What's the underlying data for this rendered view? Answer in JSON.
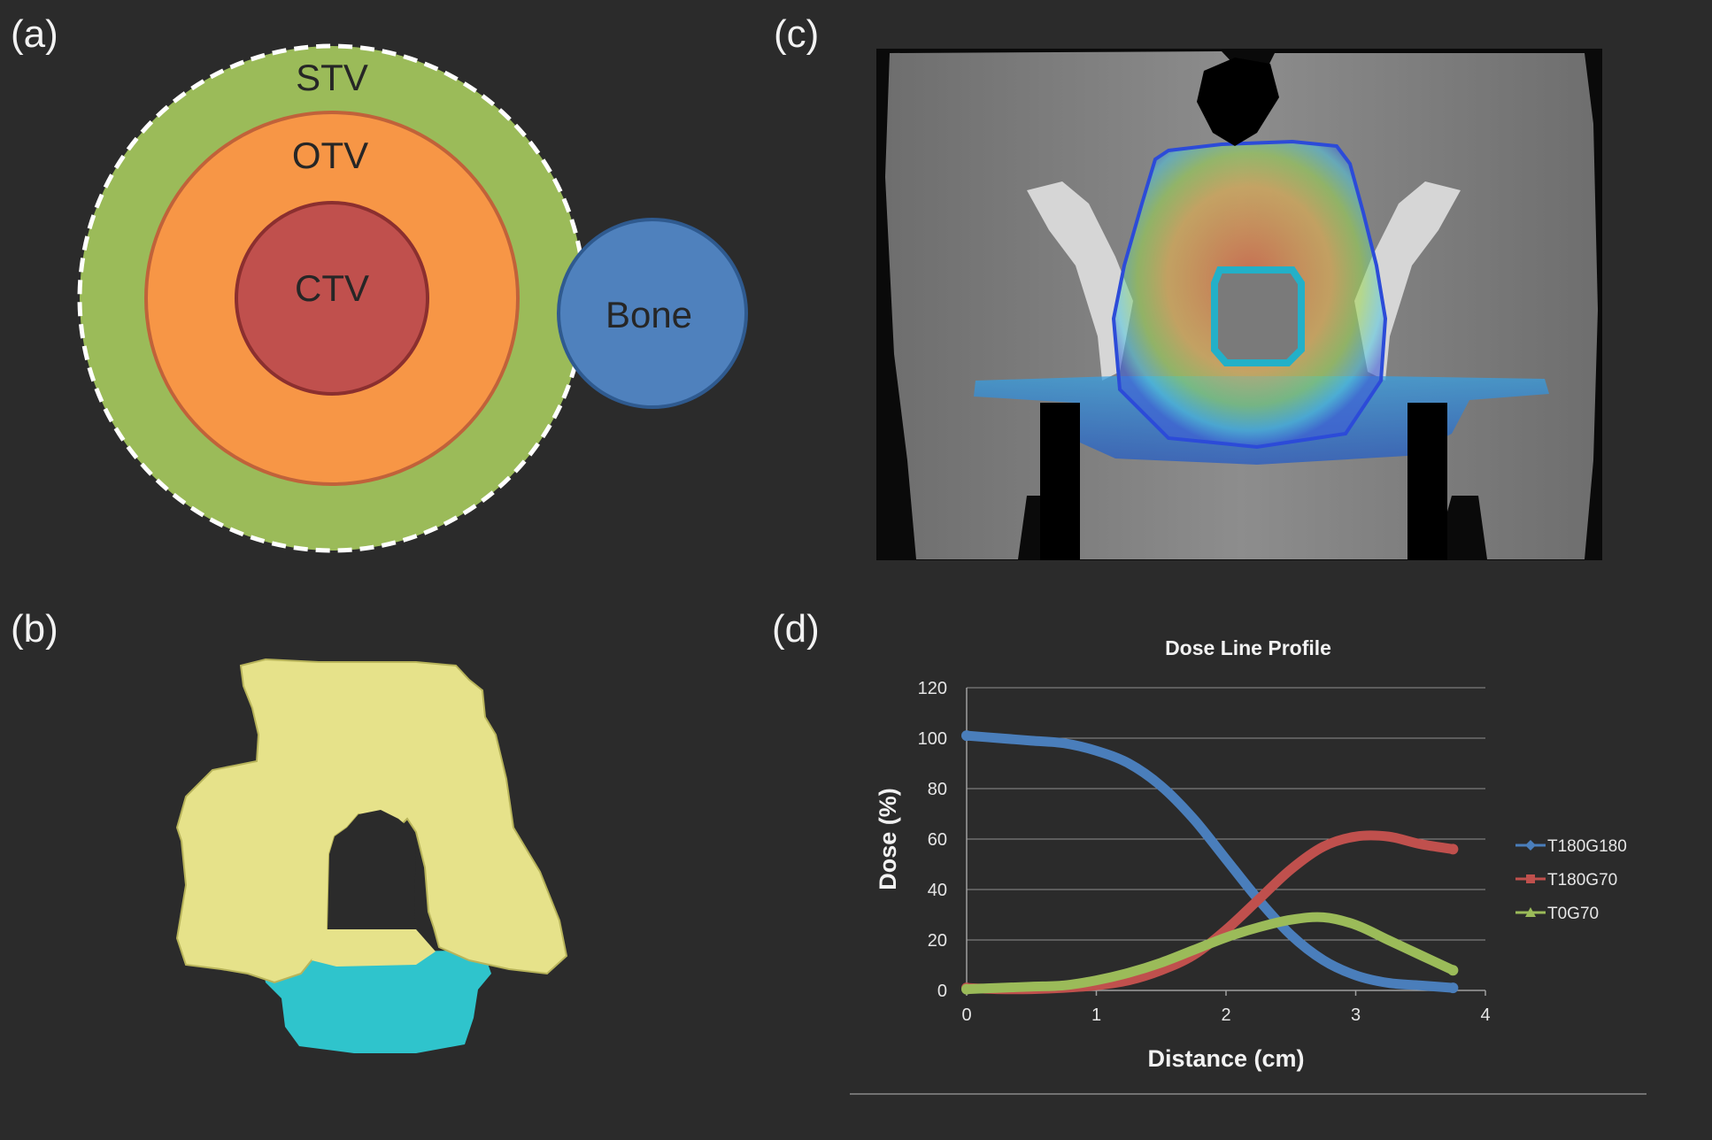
{
  "panels": {
    "a": {
      "label": "(a)"
    },
    "b": {
      "label": "(b)"
    },
    "c": {
      "label": "(c)"
    },
    "d": {
      "label": "(d)"
    }
  },
  "diagram": {
    "stv": "STV",
    "otv": "OTV",
    "ctv": "CTV",
    "bone": "Bone"
  },
  "colors": {
    "background": "#2b2b2b",
    "stv": "#9bbb59",
    "otv": "#f79646",
    "otv_stroke": "#c0623a",
    "ctv": "#c0504d",
    "ctv_stroke": "#8b2f2f",
    "bone": "#4f81bd",
    "bone_stroke": "#2f5a8f",
    "model_yellow": "#e6e28a",
    "model_cyan": "#2fc4cc"
  },
  "chart_data": {
    "type": "line",
    "title": "Dose Line Profile",
    "xlabel": "Distance (cm)",
    "ylabel": "Dose (%)",
    "xlim": [
      0,
      4
    ],
    "ylim": [
      0,
      120
    ],
    "xticks": [
      0,
      1,
      2,
      3,
      4
    ],
    "yticks": [
      0,
      20,
      40,
      60,
      80,
      100,
      120
    ],
    "grid": true,
    "legend_position": "right",
    "series": [
      {
        "name": "T180G180",
        "color": "#4a7ebb",
        "marker": "diamond",
        "x": [
          0,
          0.25,
          0.5,
          0.75,
          1.0,
          1.25,
          1.5,
          1.75,
          2.0,
          2.25,
          2.5,
          2.75,
          3.0,
          3.25,
          3.5,
          3.75
        ],
        "y": [
          101,
          100,
          99,
          98,
          95,
          90,
          81,
          68,
          52,
          36,
          22,
          12,
          6,
          3,
          2,
          1
        ]
      },
      {
        "name": "T180G70",
        "color": "#c0504d",
        "marker": "square",
        "x": [
          0,
          0.25,
          0.5,
          0.75,
          1.0,
          1.25,
          1.5,
          1.75,
          2.0,
          2.25,
          2.5,
          2.75,
          3.0,
          3.25,
          3.5,
          3.75
        ],
        "y": [
          1,
          0.5,
          0.5,
          1,
          2,
          4,
          8,
          14,
          24,
          36,
          48,
          57,
          61,
          61,
          58,
          56
        ]
      },
      {
        "name": "T0G70",
        "color": "#9bbb59",
        "marker": "triangle",
        "x": [
          0,
          0.25,
          0.5,
          0.75,
          1.0,
          1.25,
          1.5,
          1.75,
          2.0,
          2.25,
          2.5,
          2.75,
          3.0,
          3.25,
          3.5,
          3.75
        ],
        "y": [
          0.5,
          1,
          1.5,
          2,
          4,
          7,
          11,
          16,
          21,
          25,
          28,
          29,
          26,
          20,
          14,
          8
        ]
      }
    ]
  }
}
